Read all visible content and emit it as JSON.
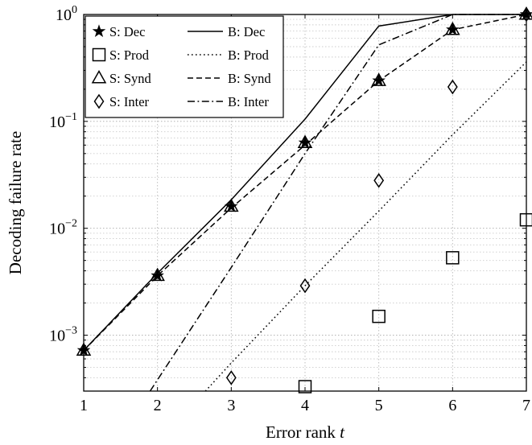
{
  "chart_data": {
    "type": "line",
    "xlabel": "Error rank t",
    "ylabel": "Decoding failure rate",
    "xlim": [
      1,
      7
    ],
    "ylim": [
      0.0003,
      1
    ],
    "yscale": "log",
    "xticks": [
      "1",
      "2",
      "3",
      "4",
      "5",
      "6",
      "7"
    ],
    "yticks": [
      {
        "value": 0.001,
        "base": "10",
        "exp": "−3"
      },
      {
        "value": 0.01,
        "base": "10",
        "exp": "−2"
      },
      {
        "value": 0.1,
        "base": "10",
        "exp": "−1"
      },
      {
        "value": 1,
        "base": "10",
        "exp": "0"
      }
    ],
    "grid": true,
    "legend_position": "top-left",
    "series": [
      {
        "name": "S: Dec",
        "kind": "markers",
        "marker": "star",
        "x": [
          1,
          2,
          3,
          4,
          5,
          6,
          7
        ],
        "y": [
          0.00072,
          0.0036,
          0.016,
          0.063,
          0.24,
          0.72,
          1.0
        ]
      },
      {
        "name": "B: Dec",
        "kind": "line",
        "dash": "solid",
        "x": [
          1,
          2,
          3,
          4,
          5,
          6,
          7
        ],
        "y": [
          0.00072,
          0.0038,
          0.0185,
          0.105,
          0.78,
          1.0,
          1.0
        ]
      },
      {
        "name": "S: Prod",
        "kind": "markers",
        "marker": "square",
        "x": [
          4,
          5,
          6,
          7
        ],
        "y": [
          0.00033,
          0.0015,
          0.0053,
          0.012
        ]
      },
      {
        "name": "B: Prod",
        "kind": "line",
        "dash": "dotted",
        "x": [
          2.65,
          3,
          4,
          5,
          6,
          7
        ],
        "y": [
          0.0003,
          0.00055,
          0.0029,
          0.0145,
          0.075,
          0.36
        ]
      },
      {
        "name": "S: Synd",
        "kind": "markers",
        "marker": "triangle",
        "x": [
          1,
          2,
          3,
          4,
          5,
          6,
          7
        ],
        "y": [
          0.00072,
          0.0036,
          0.016,
          0.063,
          0.24,
          0.72,
          1.0
        ]
      },
      {
        "name": "B: Synd",
        "kind": "line",
        "dash": "dashed",
        "x": [
          1,
          2,
          3,
          4,
          5,
          6,
          7
        ],
        "y": [
          0.00072,
          0.0036,
          0.0155,
          0.06,
          0.24,
          0.72,
          1.0
        ]
      },
      {
        "name": "S: Inter",
        "kind": "markers",
        "marker": "diamond",
        "x": [
          3,
          4,
          5,
          6,
          7
        ],
        "y": [
          0.0004,
          0.0029,
          0.028,
          0.21,
          1.0
        ]
      },
      {
        "name": "B: Inter",
        "kind": "line",
        "dash": "dashdot",
        "x": [
          1.9,
          3,
          4,
          5,
          6,
          7
        ],
        "y": [
          0.0003,
          0.0043,
          0.05,
          0.52,
          1.0,
          1.0
        ]
      }
    ],
    "legend": [
      [
        "S: Dec",
        "B: Dec"
      ],
      [
        "S: Prod",
        "B: Prod"
      ],
      [
        "S: Synd",
        "B: Synd"
      ],
      [
        "S: Inter",
        "B: Inter"
      ]
    ]
  }
}
